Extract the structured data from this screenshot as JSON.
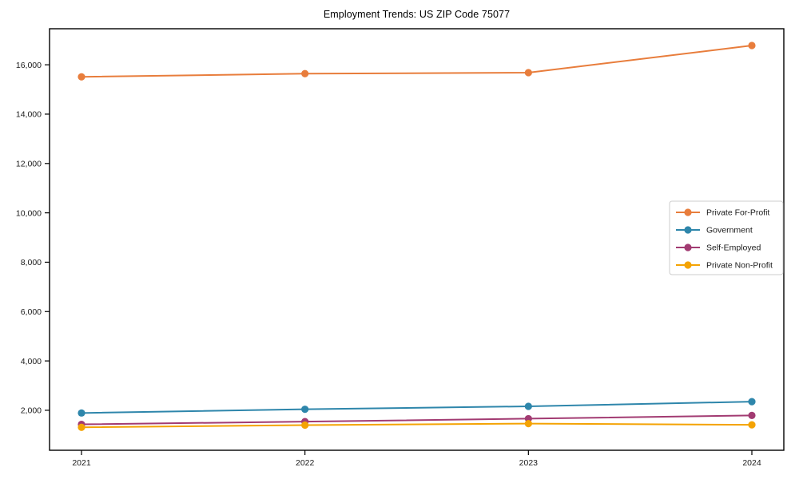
{
  "page": {
    "background": "#ffffff"
  },
  "chart_data": {
    "type": "line",
    "title": "Employment Trends: US ZIP Code 75077",
    "categories": [
      "2021",
      "2022",
      "2023",
      "2024"
    ],
    "series": [
      {
        "name": "Private For-Profit",
        "color": "#E87D3C",
        "values": [
          15510,
          15640,
          15680,
          16780
        ]
      },
      {
        "name": "Government",
        "color": "#2E86AB",
        "values": [
          1890,
          2040,
          2160,
          2350
        ]
      },
      {
        "name": "Self-Employed",
        "color": "#A23B72",
        "values": [
          1430,
          1540,
          1660,
          1790
        ]
      },
      {
        "name": "Private Non-Profit",
        "color": "#F4A304",
        "values": [
          1310,
          1400,
          1460,
          1410
        ]
      }
    ],
    "ytick_values": [
      2000,
      4000,
      6000,
      8000,
      10000,
      12000,
      14000,
      16000
    ],
    "ytick_labels": [
      "2,000",
      "4,000",
      "6,000",
      "8,000",
      "10,000",
      "12,000",
      "14,000",
      "16,000"
    ],
    "ylim": [
      380,
      17460
    ],
    "grid": false,
    "legend_position": "right-middle",
    "marker": "circle",
    "axis_color": "#000000",
    "legend_border_color": "#cccccc"
  }
}
